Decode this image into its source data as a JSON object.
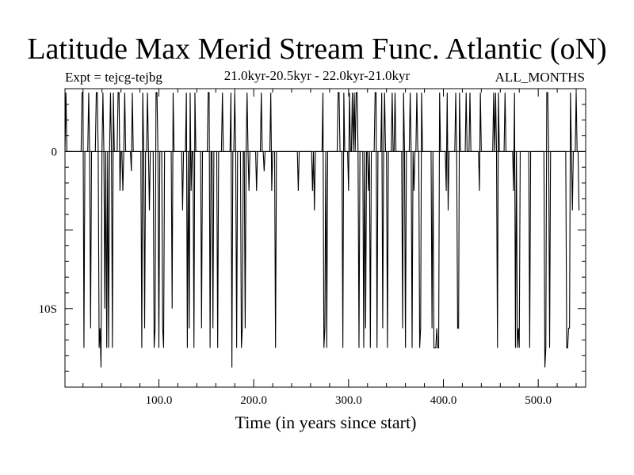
{
  "title": "Latitude Max Merid Stream Func. Atlantic (oN)",
  "subtitle_left": "Expt = tejcg-tejbg",
  "subtitle_center": "21.0kyr-20.5kyr - 22.0kyr-21.0kyr",
  "subtitle_right": "ALL_MONTHS",
  "chart_data": {
    "type": "line",
    "title": "Latitude Max Merid Stream Func. Atlantic (oN)",
    "xlabel": "Time (in years since start)",
    "ylabel": "",
    "xlim": [
      1,
      550
    ],
    "ylim": [
      -15,
      4
    ],
    "x_ticks": [
      {
        "value": 100,
        "label": "100.0"
      },
      {
        "value": 200,
        "label": "200.0"
      },
      {
        "value": 300,
        "label": "300.0"
      },
      {
        "value": 400,
        "label": "400.0"
      },
      {
        "value": 500,
        "label": "500.0"
      }
    ],
    "y_ticks": [
      {
        "value": 0,
        "label": "0"
      },
      {
        "value": -10,
        "label": "10S"
      }
    ],
    "zero_line": true,
    "series": [
      {
        "name": "tejcg-tejbg",
        "x_start": 1,
        "x_step": 1,
        "values": [
          0,
          3.75,
          0,
          0,
          0,
          0,
          0,
          0,
          0,
          0,
          0,
          0,
          0,
          0,
          0,
          0,
          0,
          0,
          3.75,
          3.75,
          -12.5,
          0,
          0,
          0,
          0,
          3.75,
          0,
          -11.25,
          0,
          0,
          0,
          0,
          0,
          3.75,
          3.75,
          0,
          -12.5,
          -11.25,
          -13.75,
          0,
          3.75,
          0,
          -10,
          0,
          -12.5,
          0,
          -12.5,
          0,
          3.75,
          0,
          -12.5,
          3.75,
          0,
          0,
          0,
          0,
          3.75,
          3.75,
          -2.5,
          0,
          0,
          -2.5,
          0,
          3.75,
          0,
          0,
          0,
          0,
          0,
          0,
          -1.25,
          3.75,
          0,
          0,
          0,
          0,
          0,
          0,
          0,
          0,
          0,
          -12.5,
          3.75,
          0,
          -11.25,
          0,
          0,
          3.75,
          0,
          -3.75,
          0,
          0,
          0,
          0,
          -12.5,
          -11.25,
          3.75,
          3.75,
          0,
          -12.5,
          0,
          0,
          0,
          -11.25,
          -12.5,
          0,
          0,
          0,
          0,
          0,
          0,
          0,
          0,
          -10,
          3.75,
          0,
          0,
          0,
          0,
          0,
          0,
          0,
          0,
          0,
          -3.75,
          0,
          0,
          0,
          3.75,
          -12.5,
          0,
          -11.25,
          3.75,
          -2.5,
          0,
          0,
          -12.5,
          3.75,
          0,
          0,
          0,
          0,
          0,
          0,
          -11.25,
          0,
          0,
          0,
          0,
          0,
          0,
          3.75,
          3.75,
          -12.5,
          0,
          0,
          -11.25,
          0,
          0,
          0,
          0,
          -12.5,
          0,
          0,
          0,
          0,
          3.75,
          0,
          0,
          0,
          0,
          0,
          0,
          0,
          0,
          3.75,
          -13.75,
          0,
          0,
          3.75,
          0,
          -12.5,
          0,
          0,
          0,
          0,
          -12.5,
          -11.25,
          0,
          0,
          -11.25,
          0,
          3.75,
          0,
          -2.5,
          0,
          0,
          0,
          0,
          0,
          0,
          0,
          -2.5,
          0,
          0,
          0,
          0,
          3.75,
          0,
          0,
          -1.25,
          0,
          0,
          0,
          0,
          0,
          0,
          3.75,
          -2.5,
          0,
          0,
          0,
          -12.5,
          0,
          0,
          0,
          0,
          0,
          0,
          0,
          0,
          0,
          0,
          0,
          0,
          0,
          0,
          0,
          0,
          0,
          0,
          0,
          0,
          0,
          0,
          0,
          -2.5,
          0,
          0,
          0,
          0,
          0,
          0,
          0,
          0,
          0,
          0,
          0,
          0,
          0,
          0,
          -2.5,
          0,
          -3.75,
          0,
          0,
          0,
          0,
          0,
          0,
          0,
          0,
          3.75,
          -12.5,
          -11.25,
          0,
          -12.5,
          0,
          0,
          0,
          0,
          0,
          0,
          0,
          0,
          0,
          0,
          0,
          3.75,
          3.75,
          0,
          0,
          0,
          -12.5,
          3.75,
          0,
          0,
          0,
          0,
          -2.5,
          3.75,
          0,
          0,
          3.75,
          0,
          3.75,
          0,
          3.75,
          3.75,
          0,
          -12.5,
          0,
          0,
          0,
          0,
          -12.5,
          0,
          -11.25,
          0,
          0,
          -2.5,
          0,
          -12.5,
          0,
          0,
          0,
          0,
          3.75,
          3.75,
          -12.5,
          0,
          0,
          0,
          0,
          3.75,
          -11.25,
          0,
          3.75,
          0,
          0,
          -12.5,
          0,
          0,
          0,
          0,
          3.75,
          0,
          0,
          3.75,
          0,
          0,
          0,
          0,
          0,
          0,
          0,
          -11.25,
          3.75,
          0,
          -12.5,
          0,
          0,
          0,
          0,
          3.75,
          0,
          -12.5,
          0,
          -2.5,
          0,
          0,
          3.75,
          0,
          0,
          -12.5,
          -11.25,
          3.75,
          0,
          0,
          0,
          0,
          0,
          0,
          0,
          0,
          0,
          0,
          -11.25,
          0,
          -12.5,
          -12.5,
          -12.5,
          -11.25,
          -12.5,
          -12.5,
          3.75,
          0,
          0,
          0,
          0,
          0,
          0,
          -2.5,
          3.75,
          -3.75,
          0,
          0,
          0,
          0,
          0,
          0,
          0,
          3.75,
          0,
          -11.25,
          -11.25,
          3.75,
          0,
          0,
          0,
          0,
          0,
          0,
          3.75,
          0,
          0,
          0,
          3.75,
          0,
          0,
          0,
          0,
          0,
          0,
          0,
          0,
          0,
          -2.5,
          3.75,
          0,
          0,
          0,
          0,
          0,
          0,
          0,
          0,
          0,
          0,
          0,
          0,
          0,
          3.75,
          0,
          3.75,
          0,
          -12.5,
          3.75,
          0,
          0,
          0,
          0,
          0,
          0,
          3.75,
          0,
          0,
          0,
          0,
          0,
          0,
          0,
          0,
          -2.5,
          3.75,
          -12.5,
          0,
          -12.5,
          -11.25,
          -12.5,
          0,
          0,
          0,
          0,
          0,
          0,
          0,
          0,
          0,
          0,
          -12.5,
          0,
          0,
          0,
          0,
          0,
          0,
          0,
          0,
          0,
          0,
          0,
          0,
          0,
          0,
          0,
          -13.75,
          -12.5,
          3.75,
          3.75,
          0,
          -12.5,
          0,
          0,
          0,
          0,
          0,
          0,
          0,
          0,
          0,
          0,
          0,
          0,
          0,
          0,
          0,
          0,
          0,
          -12.5,
          -12.5,
          -11.25,
          -11.25,
          3.75,
          0,
          -3.75,
          0,
          0,
          0,
          3.75,
          0,
          0,
          -3.75
        ]
      }
    ]
  }
}
